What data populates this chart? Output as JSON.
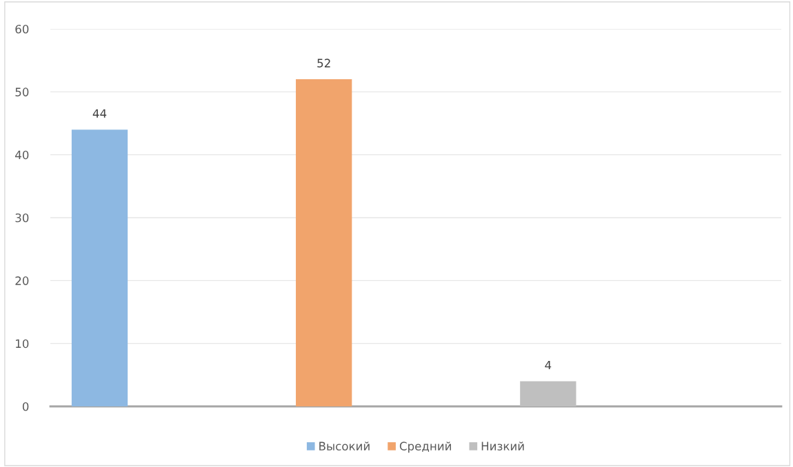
{
  "chart_data": {
    "type": "bar",
    "categories": [
      null
    ],
    "series": [
      {
        "name": "Высокий",
        "color": "#8db8e2",
        "values": [
          44
        ]
      },
      {
        "name": "Средний",
        "color": "#f1a46c",
        "values": [
          52
        ]
      },
      {
        "name": "Низкий",
        "color": "#bfbfbf",
        "values": [
          4
        ]
      }
    ],
    "ylim": [
      0,
      60
    ],
    "yticks": [
      0,
      10,
      20,
      30,
      40,
      50,
      60
    ],
    "grid": "y",
    "legend": "bottom",
    "data_labels": true
  }
}
